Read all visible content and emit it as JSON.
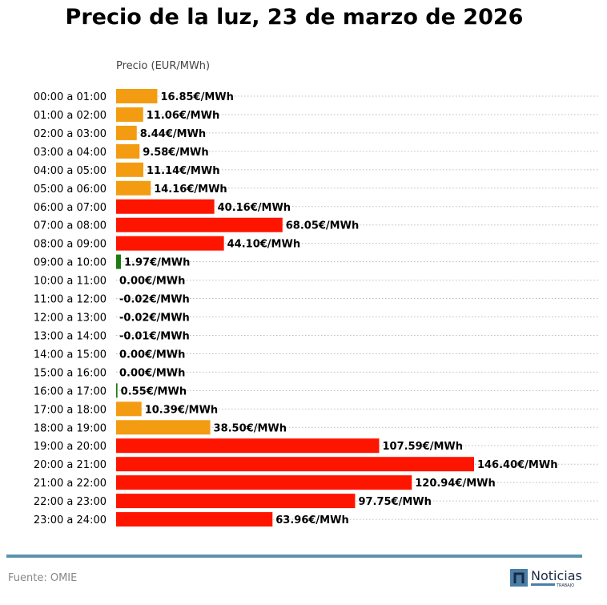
{
  "chart_data": {
    "type": "bar",
    "orientation": "horizontal",
    "title": "Precio de la luz, 23 de marzo de 2026",
    "xlabel": "Precio (EUR/MWh)",
    "xlim": [
      0,
      197.5
    ],
    "grid": "horizontal dotted",
    "value_suffix": "€/MWh",
    "categories": [
      "00:00 a 01:00",
      "01:00 a 02:00",
      "02:00 a 03:00",
      "03:00 a 04:00",
      "04:00 a 05:00",
      "05:00 a 06:00",
      "06:00 a 07:00",
      "07:00 a 08:00",
      "08:00 a 09:00",
      "09:00 a 10:00",
      "10:00 a 11:00",
      "11:00 a 12:00",
      "12:00 a 13:00",
      "13:00 a 14:00",
      "14:00 a 15:00",
      "15:00 a 16:00",
      "16:00 a 17:00",
      "17:00 a 18:00",
      "18:00 a 19:00",
      "19:00 a 20:00",
      "20:00 a 21:00",
      "21:00 a 22:00",
      "22:00 a 23:00",
      "23:00 a 24:00"
    ],
    "values": [
      16.85,
      11.06,
      8.44,
      9.58,
      11.14,
      14.16,
      40.16,
      68.05,
      44.1,
      1.97,
      0.0,
      -0.02,
      -0.02,
      -0.01,
      0.0,
      0.0,
      0.55,
      10.39,
      38.5,
      107.59,
      146.4,
      120.94,
      97.75,
      63.96
    ],
    "labels": [
      "16.85€/MWh",
      "11.06€/MWh",
      "8.44€/MWh",
      "9.58€/MWh",
      "11.14€/MWh",
      "14.16€/MWh",
      "40.16€/MWh",
      "68.05€/MWh",
      "44.10€/MWh",
      "1.97€/MWh",
      "0.00€/MWh",
      "-0.02€/MWh",
      "-0.02€/MWh",
      "-0.01€/MWh",
      "0.00€/MWh",
      "0.00€/MWh",
      "0.55€/MWh",
      "10.39€/MWh",
      "38.50€/MWh",
      "107.59€/MWh",
      "146.40€/MWh",
      "120.94€/MWh",
      "97.75€/MWh",
      "63.96€/MWh"
    ],
    "bar_colors": [
      "orange",
      "orange",
      "orange",
      "orange",
      "orange",
      "orange",
      "red",
      "red",
      "red",
      "green",
      "green",
      "green",
      "green",
      "green",
      "green",
      "green",
      "green",
      "orange",
      "orange",
      "red",
      "red",
      "red",
      "red",
      "red"
    ]
  },
  "colors": {
    "orange": "#f39c12",
    "red": "#fe1500",
    "green": "#1e7b12",
    "rule": "#5a93ad"
  },
  "footer": {
    "source": "Fuente: OMIE",
    "logo_text": "Noticias",
    "logo_subtext": "TRABAJO"
  }
}
